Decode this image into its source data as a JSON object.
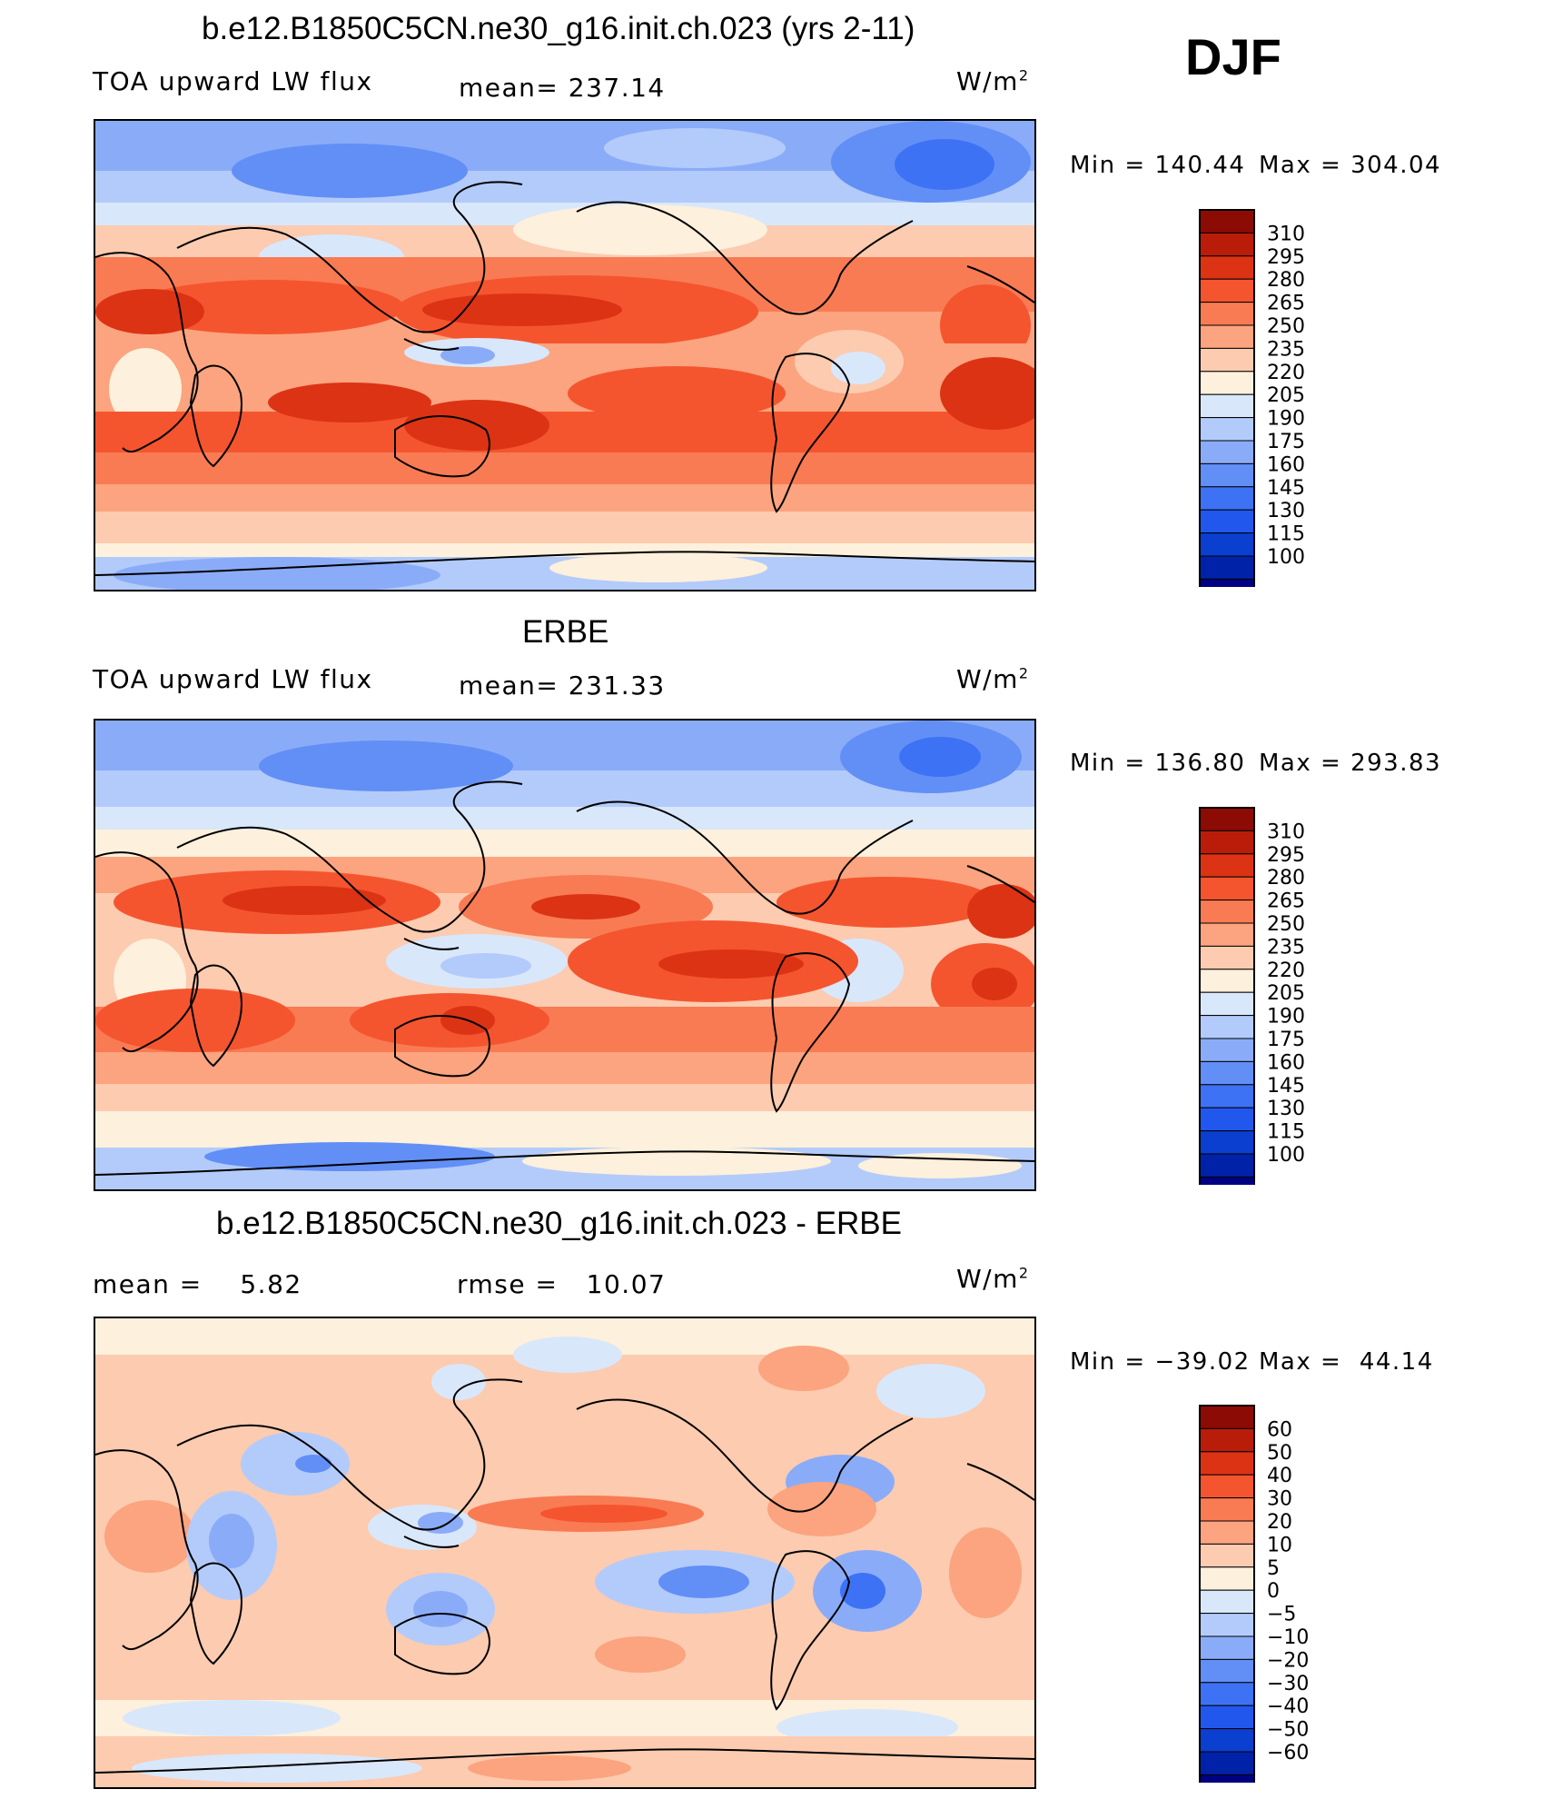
{
  "season": "DJF",
  "panels": [
    {
      "title": "b.e12.B1850C5CN.ne30_g16.init.ch.023 (yrs 2-11)",
      "left_label": "TOA upward LW flux",
      "mean_label": "mean= 237.14",
      "units": "W/m",
      "units_sup": "2",
      "min_label": "Min = 140.44",
      "max_label": "Max = 304.04"
    },
    {
      "title": "ERBE",
      "left_label": "TOA upward LW flux",
      "mean_label": "mean= 231.33",
      "units": "W/m",
      "units_sup": "2",
      "min_label": "Min = 136.80",
      "max_label": "Max = 293.83"
    },
    {
      "title": "b.e12.B1850C5CN.ne30_g16.init.ch.023 - ERBE",
      "left_label": "mean =    5.82",
      "mean_label": "rmse =   10.07",
      "units": "W/m",
      "units_sup": "2",
      "min_label": "Min = −39.02",
      "max_label": "Max =  44.14"
    }
  ],
  "colors": {
    "flux_scale": [
      "#000080",
      "#0022a8",
      "#0a3fd0",
      "#2257ee",
      "#3e72f4",
      "#628ff6",
      "#8aacf8",
      "#b3cbfa",
      "#d9e7fb",
      "#fdf0dc",
      "#fccbb0",
      "#fba47f",
      "#f97b53",
      "#f4552f",
      "#dc3315",
      "#b91d0a",
      "#8c0b05"
    ],
    "diff_scale": [
      "#000080",
      "#0022a8",
      "#0a3fd0",
      "#2257ee",
      "#3e72f4",
      "#628ff6",
      "#8aacf8",
      "#b3cbfa",
      "#d9e7fb",
      "#fdf0dc",
      "#fccbb0",
      "#fba47f",
      "#f97b53",
      "#f4552f",
      "#dc3315",
      "#b91d0a",
      "#8c0b05"
    ]
  },
  "chart_data": [
    {
      "type": "heatmap",
      "title": "b.e12.B1850C5CN.ne30_g16.init.ch.023 (yrs 2-11)",
      "variable": "TOA upward LW flux",
      "units": "W/m2",
      "mean": 237.14,
      "min": 140.44,
      "max": 304.04,
      "levels": [
        100,
        115,
        130,
        145,
        160,
        175,
        190,
        205,
        220,
        235,
        250,
        265,
        280,
        295,
        310
      ],
      "level_labels": [
        "310",
        "295",
        "280",
        "265",
        "250",
        "235",
        "220",
        "205",
        "190",
        "175",
        "160",
        "145",
        "130",
        "115",
        "100"
      ]
    },
    {
      "type": "heatmap",
      "title": "ERBE",
      "variable": "TOA upward LW flux",
      "units": "W/m2",
      "mean": 231.33,
      "min": 136.8,
      "max": 293.83,
      "levels": [
        100,
        115,
        130,
        145,
        160,
        175,
        190,
        205,
        220,
        235,
        250,
        265,
        280,
        295,
        310
      ],
      "level_labels": [
        "310",
        "295",
        "280",
        "265",
        "250",
        "235",
        "220",
        "205",
        "190",
        "175",
        "160",
        "145",
        "130",
        "115",
        "100"
      ]
    },
    {
      "type": "heatmap",
      "title": "b.e12.B1850C5CN.ne30_g16.init.ch.023 - ERBE",
      "units": "W/m2",
      "mean": 5.82,
      "rmse": 10.07,
      "min": -39.02,
      "max": 44.14,
      "levels": [
        -60,
        -50,
        -40,
        -30,
        -20,
        -10,
        -5,
        0,
        5,
        10,
        20,
        30,
        40,
        50,
        60
      ],
      "level_labels": [
        "60",
        "50",
        "40",
        "30",
        "20",
        "10",
        "5",
        "0",
        "−5",
        "−10",
        "−20",
        "−30",
        "−40",
        "−50",
        "−60"
      ]
    }
  ]
}
